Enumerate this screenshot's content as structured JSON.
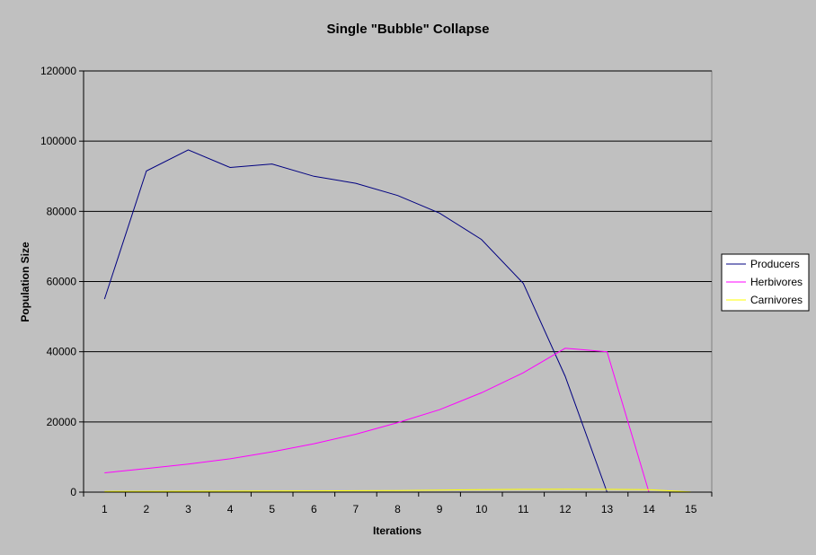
{
  "chart_data": {
    "type": "line",
    "title": "Single \"Bubble\" Collapse",
    "xlabel": "Iterations",
    "ylabel": "Population Size",
    "categories": [
      "1",
      "2",
      "3",
      "4",
      "5",
      "6",
      "7",
      "8",
      "9",
      "10",
      "11",
      "12",
      "13",
      "14",
      "15"
    ],
    "yticks": [
      "0",
      "20000",
      "40000",
      "60000",
      "80000",
      "100000",
      "120000"
    ],
    "ylim": [
      0,
      120000
    ],
    "grid": "horizontal",
    "legend_position": "right",
    "series": [
      {
        "name": "Producers",
        "color": "#000080",
        "values": [
          55000,
          91500,
          97500,
          92500,
          93500,
          90000,
          88000,
          84500,
          79500,
          72000,
          59500,
          33000,
          0,
          null,
          null
        ]
      },
      {
        "name": "Herbivores",
        "color": "#ff00ff",
        "values": [
          5500,
          6700,
          8000,
          9500,
          11500,
          13800,
          16500,
          19800,
          23500,
          28300,
          34000,
          41000,
          40000,
          0,
          null
        ]
      },
      {
        "name": "Carnivores",
        "color": "#ffff00",
        "values": [
          200,
          220,
          250,
          280,
          320,
          360,
          400,
          450,
          600,
          700,
          800,
          850,
          800,
          700,
          50
        ]
      }
    ],
    "colors": {
      "page_background": "#c0c0c0",
      "plot_background": "#c0c0c0",
      "gridline": "#000000",
      "legend_background": "#ffffff"
    }
  }
}
